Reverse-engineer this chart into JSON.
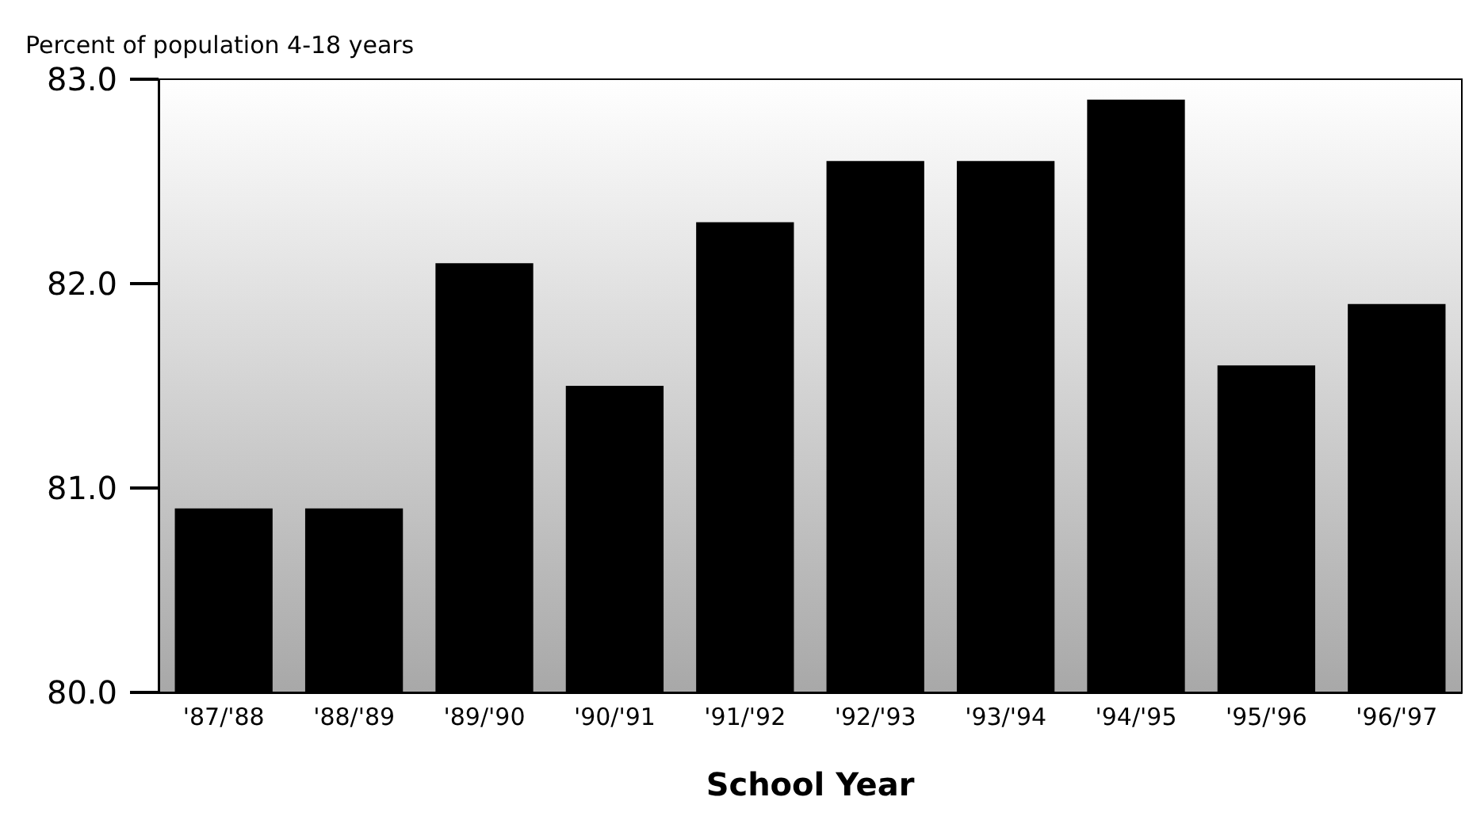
{
  "chart_data": {
    "type": "bar",
    "ylabel": "Percent of population 4-18 years",
    "xlabel": "School Year",
    "categories": [
      "'87/'88",
      "'88/'89",
      "'89/'90",
      "'90/'91",
      "'91/'92",
      "'92/'93",
      "'93/'94",
      "'94/'95",
      "'95/'96",
      "'96/'97"
    ],
    "values": [
      80.9,
      80.9,
      82.1,
      81.5,
      82.3,
      82.6,
      82.6,
      82.9,
      81.6,
      81.9
    ],
    "color": "#000000",
    "ylim": [
      80,
      83
    ],
    "yticks": [
      {
        "value": 80,
        "label": "80.0"
      },
      {
        "value": 81,
        "label": "81.0"
      },
      {
        "value": 82,
        "label": "82.0"
      },
      {
        "value": 83,
        "label": "83.0"
      }
    ],
    "grid": false
  }
}
